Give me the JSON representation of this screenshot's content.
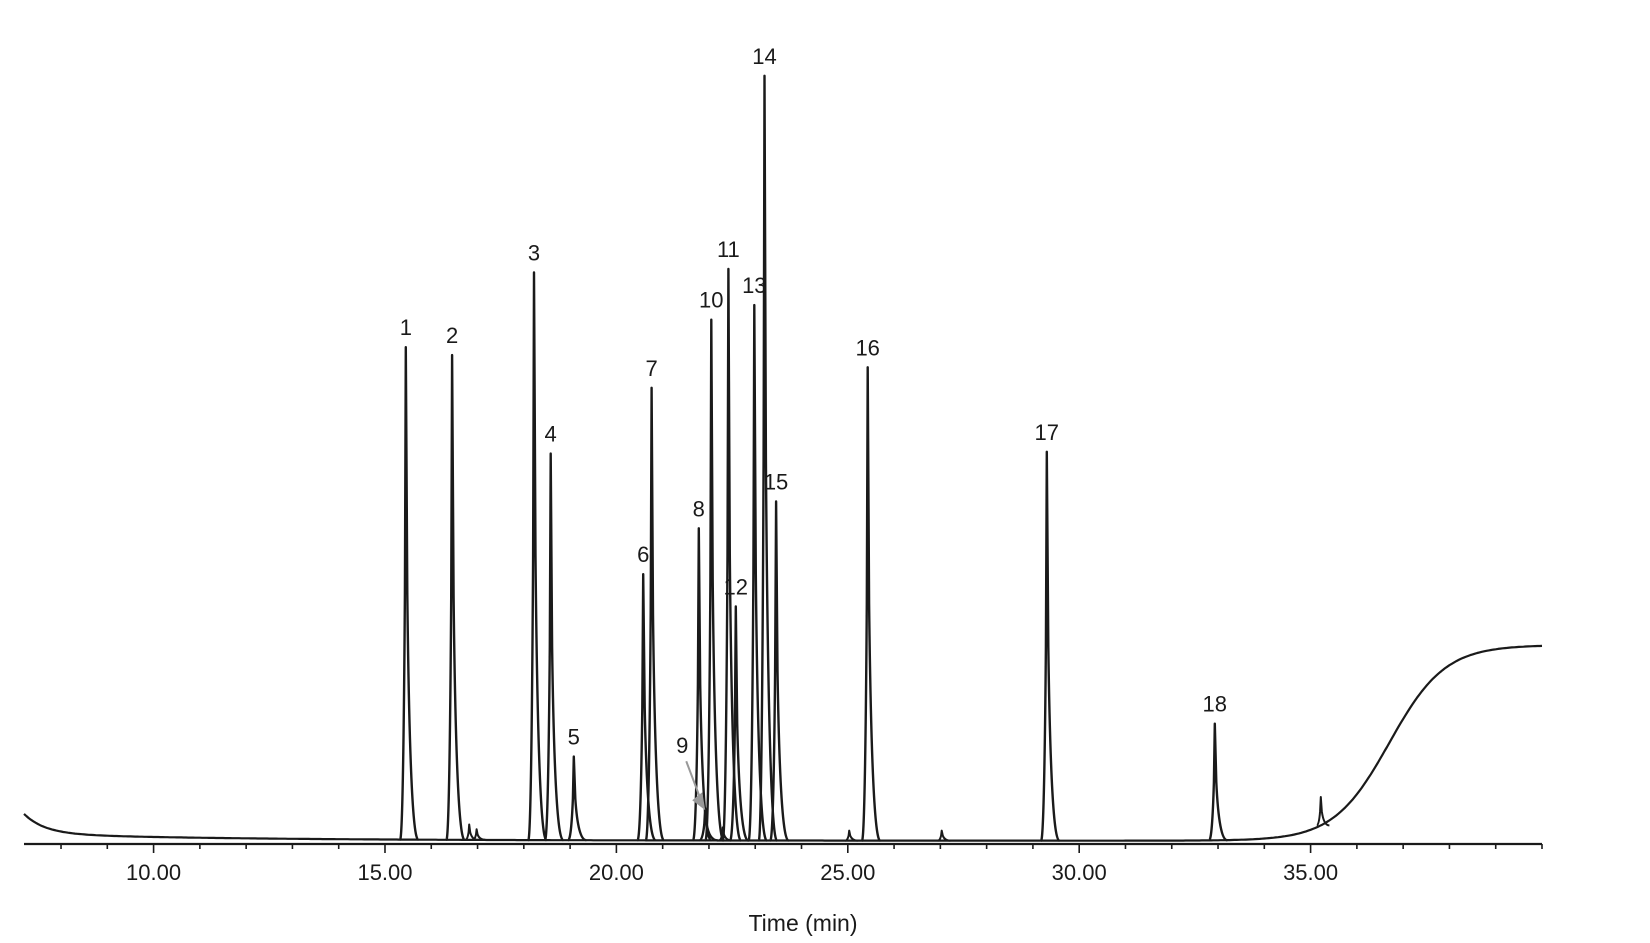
{
  "chart_data": {
    "type": "line",
    "title": "",
    "xlabel": "Time (min)",
    "ylabel": "",
    "xlim": [
      7.2,
      40.0
    ],
    "ylim": [
      0,
      100
    ],
    "grid": false,
    "legend": "none",
    "x_ticks": [
      {
        "value": 10,
        "label": "10.00"
      },
      {
        "value": 15,
        "label": "15.00"
      },
      {
        "value": 20,
        "label": "20.00"
      },
      {
        "value": 25,
        "label": "25.00"
      },
      {
        "value": 30,
        "label": "30.00"
      },
      {
        "value": 35,
        "label": "35.00"
      }
    ],
    "x_minor_step": 1,
    "line_color": "#1a1a1a",
    "arrow_color": "#999999",
    "peaks": [
      {
        "label": "1",
        "x": 15.45,
        "y": 64.5
      },
      {
        "label": "2",
        "x": 16.45,
        "y": 63.5
      },
      {
        "label": "3",
        "x": 18.22,
        "y": 74.3
      },
      {
        "label": "4",
        "x": 18.58,
        "y": 50.7
      },
      {
        "label": "5",
        "x": 19.08,
        "y": 11.2
      },
      {
        "label": "6",
        "x": 20.58,
        "y": 35.0
      },
      {
        "label": "7",
        "x": 20.76,
        "y": 59.3
      },
      {
        "label": "8",
        "x": 21.78,
        "y": 41.0
      },
      {
        "label": "9",
        "x": 21.92,
        "y": 4.5
      },
      {
        "label": "10",
        "x": 22.05,
        "y": 68.2
      },
      {
        "label": "11",
        "x": 22.42,
        "y": 74.8
      },
      {
        "label": "12",
        "x": 22.58,
        "y": 30.8
      },
      {
        "label": "13",
        "x": 22.98,
        "y": 70.1
      },
      {
        "label": "14",
        "x": 23.2,
        "y": 100
      },
      {
        "label": "15",
        "x": 23.45,
        "y": 44.5
      },
      {
        "label": "16",
        "x": 25.43,
        "y": 62.0
      },
      {
        "label": "17",
        "x": 29.3,
        "y": 51.0
      },
      {
        "label": "18",
        "x": 32.93,
        "y": 15.5
      }
    ],
    "minor_peaks": [
      {
        "x": 16.82,
        "y": 2.3
      },
      {
        "x": 16.98,
        "y": 1.7
      },
      {
        "x": 22.3,
        "y": 2.0
      },
      {
        "x": 25.03,
        "y": 1.6
      },
      {
        "x": 27.03,
        "y": 1.6
      },
      {
        "x": 35.22,
        "y": 4.0
      }
    ]
  }
}
